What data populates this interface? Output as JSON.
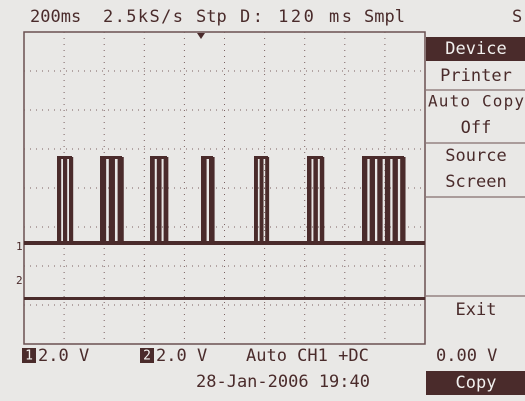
{
  "header": {
    "timebase": "200ms",
    "sample_rate": "2.5kS/s",
    "mode": "Stp",
    "delay": "D: 120 ms",
    "acquisition": "Smpl",
    "overflow": "S"
  },
  "markers": {
    "ch1": "1",
    "ch2": "2"
  },
  "menu": {
    "title": "Device",
    "device": "Printer",
    "auto_copy_label": "Auto Copy",
    "auto_copy_value": "Off",
    "source_label": "Source",
    "source_value": "Screen",
    "exit": "Exit",
    "action": "Copy"
  },
  "status": {
    "ch1_id": "1",
    "ch1_scale": "2.0 V",
    "ch2_id": "2",
    "ch2_scale": "2.0 V",
    "trigger": "Auto CH1 +DC",
    "level": "0.00 V",
    "datetime": "28-Jan-2006 19:40"
  }
}
